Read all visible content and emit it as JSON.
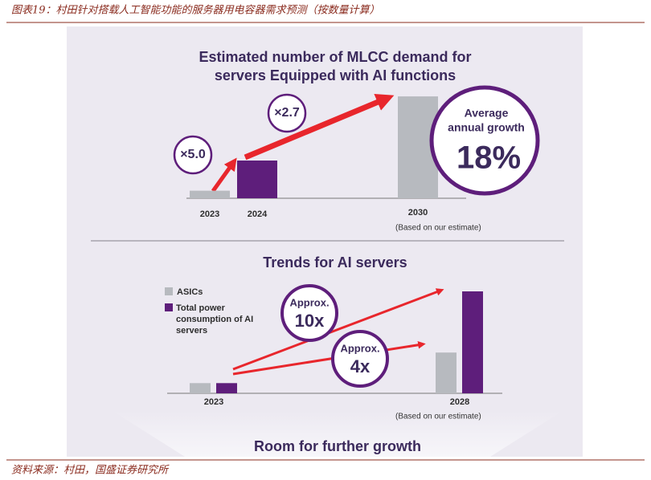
{
  "caption": "图表19：村田针对搭载人工智能功能的服务器用电容器需求预测（按数量计算）",
  "source": "资料来源：村田，国盛证券研究所",
  "footer_note": "Room for further growth",
  "chart_data": [
    {
      "type": "bar",
      "title": [
        "Estimated number of MLCC demand for",
        "servers Equipped with AI functions"
      ],
      "categories": [
        "2023",
        "2024",
        "2030"
      ],
      "values": [
        1,
        5,
        13.5
      ],
      "colors": [
        "#b7babf",
        "#5e1e7b",
        "#b7babf"
      ],
      "ylim": [
        0,
        14
      ],
      "annotations": [
        "×5.0",
        "×2.7",
        "Average",
        "annual growth",
        "18%",
        "(Based on our estimate)"
      ]
    },
    {
      "type": "grouped-bar",
      "title": "Trends for AI servers",
      "categories": [
        "2023",
        "2028"
      ],
      "series": [
        {
          "name": "ASICs",
          "color": "#b7babf",
          "values": [
            1,
            4
          ]
        },
        {
          "name": "Total power consumption of AI servers",
          "color": "#5e1e7b",
          "values": [
            1,
            10
          ]
        }
      ],
      "ylim": [
        0,
        10
      ],
      "annotations": [
        "Approx.",
        "10x",
        "Approx.",
        "4x",
        "(Based on our estimate)"
      ]
    }
  ]
}
